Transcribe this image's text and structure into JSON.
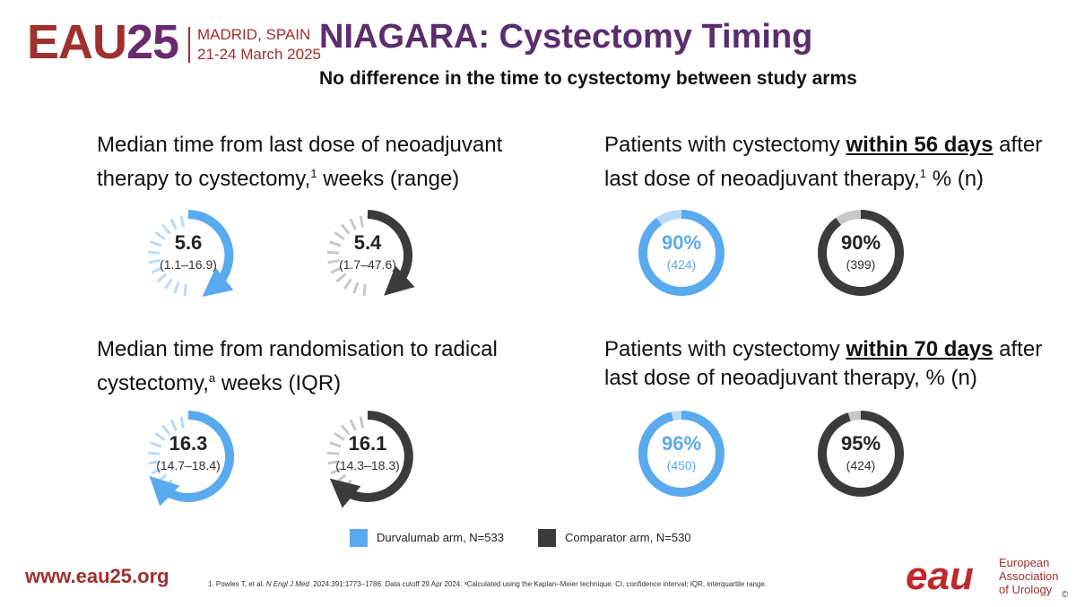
{
  "header": {
    "logo_eau": "EAU",
    "logo_year": "25",
    "location_line1": "MADRID, SPAIN",
    "location_line2": "21-24 March 2025",
    "title": "NIAGARA: Cystectomy Timing",
    "subtitle": "No difference in the time to cystectomy between study arms"
  },
  "panels": {
    "median_last_dose": {
      "line1": "Median time from last dose of neoadjuvant",
      "line2a": "therapy to cystectomy,",
      "sup": "1",
      "line2b": " weeks (range)",
      "durv_value": "5.6",
      "durv_range": "(1.1–16.9)",
      "comp_value": "5.4",
      "comp_range": "(1.7–47.6)"
    },
    "median_randomisation": {
      "line1": "Median time from randomisation to radical",
      "line2a": "cystectomy,",
      "sup": "a",
      "line2b": " weeks (IQR)",
      "durv_value": "16.3",
      "durv_range": "(14.7–18.4)",
      "comp_value": "16.1",
      "comp_range": "(14.3–18.3)"
    },
    "within_56": {
      "line1a": "Patients with cystectomy ",
      "line1u": "within 56 days",
      "line1b": " after",
      "line2a": "last dose of neoadjuvant therapy,",
      "sup": "1",
      "line2b": " % (n)",
      "durv_pct": "90%",
      "durv_n": "(424)",
      "durv_fraction": 0.9,
      "comp_pct": "90%",
      "comp_n": "(399)",
      "comp_fraction": 0.9
    },
    "within_70": {
      "line1a": "Patients with cystectomy ",
      "line1u": "within 70 days",
      "line1b": " after",
      "line2": "last dose of neoadjuvant therapy, % (n)",
      "durv_pct": "96%",
      "durv_n": "(450)",
      "durv_fraction": 0.96,
      "comp_pct": "95%",
      "comp_n": "(424)",
      "comp_fraction": 0.95
    }
  },
  "legend": {
    "durv_label": "Durvalumab arm, N=533",
    "comp_label": "Comparator arm, N=530"
  },
  "footer": {
    "url": "www.eau25.org",
    "ref_a": "1. Powles T, et al. ",
    "ref_journal": "N Engl J Med",
    "ref_b": ". 2024;391:1773–1786. Data cutoff 29 Apr 2024. ᵃCalculated using the Kaplan–Meier technique. CI, confidence interval; IQR, interquartile range.",
    "brand": "eau",
    "org_line1": "European",
    "org_line2": "Association",
    "org_line3": "of Urology",
    "copyright": "©"
  },
  "colors": {
    "durvalumab": "#5aaaf0",
    "durvalumab_light": "#b8dbfa",
    "comparator": "#3a3c3b",
    "comparator_light": "#c8c8c8",
    "title": "#5b2d6e",
    "brand_red": "#a0302e"
  }
}
